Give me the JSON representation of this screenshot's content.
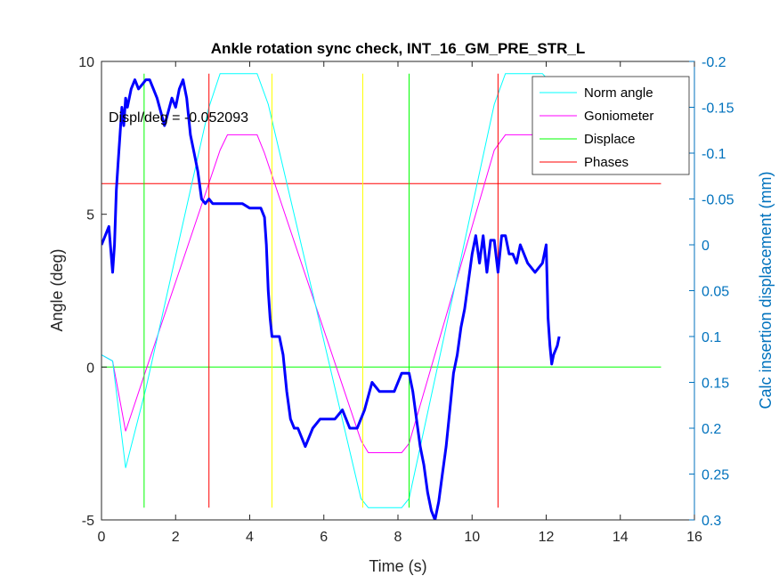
{
  "chart_data": {
    "type": "line",
    "title": "Ankle rotation sync check, INT_16_GM_PRE_STR_L",
    "xlabel": "Time (s)",
    "ylabel": "Angle (deg)",
    "ylabel_right": "Calc insertion displacement (mm)",
    "xlim": [
      0,
      16
    ],
    "ylim": [
      -5,
      10
    ],
    "ylim_right": [
      -0.2,
      0.3
    ],
    "right_axis_reversed": true,
    "xticks": [
      0,
      2,
      4,
      6,
      8,
      10,
      12,
      14,
      16
    ],
    "yticks": [
      -5,
      0,
      5,
      10
    ],
    "yticks_right": [
      -0.2,
      -0.15,
      -0.1,
      -0.05,
      0,
      0.05,
      0.1,
      0.15,
      0.2,
      0.25,
      0.3
    ],
    "xtick_labels": [
      "0",
      "2",
      "4",
      "6",
      "8",
      "10",
      "12",
      "14",
      "16"
    ],
    "ytick_labels": [
      "-5",
      "0",
      "5",
      "10"
    ],
    "ytick_right_labels": [
      "-0.2",
      "-0.15",
      "-0.1",
      "-0.05",
      "0",
      "0.05",
      "0.1",
      "0.15",
      "0.2",
      "0.25",
      "0.3"
    ],
    "annotation": "Displ/deg = -0.052093",
    "legend_position": "top-right",
    "colors": {
      "norm_angle": "#00FFFF",
      "goniometer": "#FF00FF",
      "displace": "#00FF00",
      "phases": "#FF0000",
      "lines_yellow": "#FFFF00",
      "displacement_trace": "#0000FF",
      "right_axis": "#0072BD"
    },
    "series": [
      {
        "name": "Norm angle",
        "color": "#00FFFF",
        "x": [
          0,
          0.3,
          0.65,
          1.2,
          2.9,
          3.2,
          4.2,
          4.5,
          7.0,
          7.2,
          8.1,
          8.3,
          10.6,
          10.9,
          11.9,
          12.2
        ],
        "y": [
          0.4,
          0.2,
          -3.3,
          -0.7,
          8.5,
          9.6,
          9.6,
          8.6,
          -4.3,
          -4.6,
          -4.6,
          -4.3,
          8.6,
          9.6,
          9.6,
          9.2
        ]
      },
      {
        "name": "Goniometer",
        "color": "#FF00FF",
        "x": [
          0,
          0.3,
          0.65,
          1.2,
          3.2,
          3.4,
          4.2,
          4.4,
          7.0,
          7.2,
          8.1,
          8.3,
          10.6,
          10.9,
          11.9,
          12.2
        ],
        "y": [
          0.4,
          0.2,
          -2.1,
          -0.1,
          7.1,
          7.6,
          7.6,
          7.0,
          -2.4,
          -2.8,
          -2.8,
          -2.5,
          7.1,
          7.6,
          7.6,
          7.4
        ]
      },
      {
        "name": "Displace",
        "color": "#00FF00",
        "x": [
          0,
          15.1
        ],
        "y": [
          0,
          0
        ]
      },
      {
        "name": "Phases",
        "color": "#FF0000",
        "x": [
          0,
          15.1
        ],
        "y": [
          6,
          6
        ]
      }
    ],
    "vertical_lines": [
      {
        "x": 1.15,
        "color": "#00FF00",
        "y": [
          -4.6,
          9.6
        ]
      },
      {
        "x": 2.9,
        "color": "#FF0000",
        "y": [
          -4.6,
          9.6
        ]
      },
      {
        "x": 4.6,
        "color": "#FFFF00",
        "y": [
          -4.6,
          9.6
        ]
      },
      {
        "x": 7.05,
        "color": "#FFFF00",
        "y": [
          -4.6,
          9.6
        ]
      },
      {
        "x": 8.3,
        "color": "#00FF00",
        "y": [
          -4.6,
          9.6
        ]
      },
      {
        "x": 10.7,
        "color": "#FF0000",
        "y": [
          -4.6,
          9.6
        ]
      }
    ],
    "displacement_trace": {
      "axis": "right",
      "color": "#0000FF",
      "x": [
        0,
        0.1,
        0.2,
        0.3,
        0.35,
        0.4,
        0.45,
        0.5,
        0.55,
        0.6,
        0.65,
        0.7,
        0.8,
        0.9,
        1.0,
        1.1,
        1.2,
        1.3,
        1.4,
        1.5,
        1.7,
        1.9,
        2.0,
        2.1,
        2.2,
        2.3,
        2.4,
        2.5,
        2.6,
        2.7,
        2.8,
        2.9,
        3.0,
        3.2,
        3.5,
        3.8,
        4.0,
        4.3,
        4.4,
        4.45,
        4.5,
        4.55,
        4.6,
        4.7,
        4.8,
        4.9,
        5.0,
        5.1,
        5.2,
        5.3,
        5.5,
        5.7,
        5.9,
        6.1,
        6.3,
        6.5,
        6.7,
        6.9,
        7.1,
        7.3,
        7.5,
        7.7,
        7.9,
        8.1,
        8.3,
        8.4,
        8.5,
        8.6,
        8.7,
        8.8,
        8.9,
        9.0,
        9.1,
        9.2,
        9.3,
        9.4,
        9.5,
        9.6,
        9.7,
        9.8,
        9.9,
        10.0,
        10.1,
        10.2,
        10.3,
        10.4,
        10.5,
        10.6,
        10.7,
        10.8,
        10.9,
        11.0,
        11.1,
        11.2,
        11.3,
        11.5,
        11.7,
        11.9,
        12.0,
        12.05,
        12.1,
        12.15,
        12.2,
        12.3,
        12.35
      ],
      "y": [
        0.0,
        -0.01,
        -0.02,
        0.03,
        0.0,
        -0.06,
        -0.09,
        -0.12,
        -0.15,
        -0.13,
        -0.16,
        -0.15,
        -0.17,
        -0.18,
        -0.17,
        -0.175,
        -0.18,
        -0.18,
        -0.17,
        -0.16,
        -0.13,
        -0.16,
        -0.15,
        -0.17,
        -0.18,
        -0.16,
        -0.12,
        -0.1,
        -0.08,
        -0.05,
        -0.045,
        -0.05,
        -0.045,
        -0.045,
        -0.045,
        -0.045,
        -0.04,
        -0.04,
        -0.03,
        0.0,
        0.05,
        0.08,
        0.1,
        0.1,
        0.1,
        0.12,
        0.16,
        0.19,
        0.2,
        0.2,
        0.22,
        0.2,
        0.19,
        0.19,
        0.19,
        0.18,
        0.2,
        0.2,
        0.18,
        0.15,
        0.16,
        0.16,
        0.16,
        0.14,
        0.14,
        0.16,
        0.19,
        0.22,
        0.24,
        0.27,
        0.29,
        0.3,
        0.28,
        0.25,
        0.22,
        0.18,
        0.14,
        0.12,
        0.09,
        0.07,
        0.04,
        0.01,
        -0.01,
        0.02,
        -0.01,
        0.03,
        -0.005,
        -0.005,
        0.03,
        -0.01,
        -0.01,
        0.01,
        0.01,
        0.02,
        0.0,
        0.02,
        0.03,
        0.02,
        0.0,
        0.08,
        0.11,
        0.13,
        0.12,
        0.11,
        0.1
      ]
    }
  }
}
